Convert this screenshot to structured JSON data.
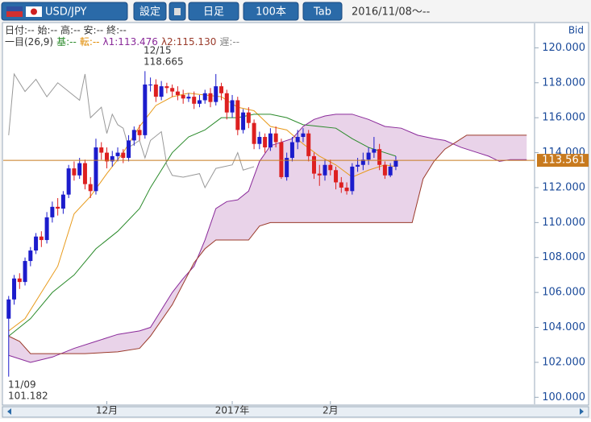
{
  "header": {
    "pair": "USD/JPY",
    "buttons": [
      "設定",
      "日足",
      "100本",
      "Tab"
    ],
    "range": "2016/11/08～--"
  },
  "info": {
    "line1": "日付:-- 始:-- 高:-- 安:-- 終:--",
    "line2": [
      {
        "text": "一目(26,9)",
        "color": "#333333"
      },
      {
        "text": "基:--",
        "color": "#2a8a2a"
      },
      {
        "text": "転:--",
        "color": "#e08a00"
      },
      {
        "text": "λ1:113.476",
        "color": "#8a2a9a"
      },
      {
        "text": "λ2:115.130",
        "color": "#9a3a2a"
      },
      {
        "text": "遅:--",
        "color": "#888888"
      }
    ]
  },
  "chart_data": {
    "type": "candlestick",
    "axis_label": "Bid",
    "annotations": [
      {
        "date": "12/15",
        "price": "118.665"
      },
      {
        "date": "11/09",
        "price": "101.182"
      }
    ],
    "xlim": [
      -1,
      96
    ],
    "xticks": [
      {
        "value": 18,
        "label": "12月"
      },
      {
        "value": 41,
        "label": "2017年"
      },
      {
        "value": 59,
        "label": "2月"
      }
    ],
    "ylim": [
      99.6,
      121.4
    ],
    "yticks": [
      {
        "value": 100,
        "label": "100.000"
      },
      {
        "value": 102,
        "label": "102.000"
      },
      {
        "value": 104,
        "label": "104.000"
      },
      {
        "value": 106,
        "label": "106.000"
      },
      {
        "value": 108,
        "label": "108.000"
      },
      {
        "value": 110,
        "label": "110.000"
      },
      {
        "value": 112,
        "label": "112.000"
      },
      {
        "value": 114,
        "label": "114.000"
      },
      {
        "value": 116,
        "label": "116.000"
      },
      {
        "value": 118,
        "label": "118.000"
      },
      {
        "value": 120,
        "label": "120.000"
      }
    ],
    "up_color": "#1c1ccc",
    "down_color": "#dd2020",
    "current_price": {
      "value": 113.561,
      "label": "113.561",
      "color": "#c87a1e"
    },
    "ohlc": {
      "open": [
        104.5,
        105.6,
        106.8,
        106.6,
        107.8,
        108.4,
        109.2,
        109.0,
        110.3,
        110.9,
        110.8,
        111.6,
        113.1,
        112.7,
        113.4,
        112.2,
        111.8,
        114.3,
        114.0,
        113.5,
        113.8,
        114.0,
        113.7,
        114.7,
        115.3,
        115.0,
        117.9,
        117.9,
        117.2,
        117.8,
        117.7,
        117.5,
        117.3,
        117.1,
        117.2,
        116.8,
        117.0,
        117.4,
        116.9,
        117.8,
        117.4,
        116.3,
        117.0,
        115.3,
        116.3,
        115.7,
        114.5,
        114.9,
        114.3,
        115.1,
        114.6,
        112.6,
        113.7,
        114.6,
        114.9,
        115.1,
        113.8,
        112.8,
        112.7,
        113.3,
        113.0,
        112.3,
        112.0,
        111.8,
        113.2,
        113.3,
        113.6,
        114.0,
        114.2,
        113.3,
        112.7,
        113.2
      ],
      "high": [
        105.8,
        107.0,
        107.1,
        108.0,
        108.6,
        109.4,
        109.5,
        110.6,
        111.2,
        111.4,
        111.8,
        113.3,
        113.5,
        113.7,
        113.6,
        112.6,
        114.8,
        114.6,
        114.3,
        114.1,
        114.3,
        114.2,
        115.0,
        115.5,
        115.6,
        118.665,
        118.3,
        118.2,
        118.1,
        118.0,
        117.9,
        117.8,
        117.6,
        117.4,
        117.5,
        117.3,
        117.6,
        117.7,
        118.5,
        118.0,
        117.6,
        117.3,
        117.2,
        116.5,
        116.6,
        115.9,
        115.2,
        115.1,
        115.4,
        115.5,
        114.8,
        114.0,
        114.9,
        115.3,
        115.4,
        115.3,
        114.0,
        113.3,
        113.6,
        113.6,
        113.2,
        112.6,
        112.3,
        113.4,
        113.7,
        114.0,
        114.3,
        114.9,
        114.5,
        113.5,
        113.4,
        113.8
      ],
      "low": [
        101.182,
        105.3,
        106.2,
        106.4,
        107.5,
        108.2,
        108.6,
        108.8,
        110.0,
        110.4,
        110.5,
        111.4,
        112.4,
        112.5,
        111.9,
        111.4,
        111.6,
        113.6,
        113.1,
        113.2,
        113.5,
        113.4,
        113.5,
        114.4,
        114.7,
        114.8,
        117.5,
        116.9,
        117.0,
        117.4,
        117.2,
        117.0,
        116.8,
        116.9,
        116.5,
        116.6,
        116.8,
        116.6,
        116.7,
        117.0,
        115.9,
        116.0,
        115.0,
        115.1,
        115.4,
        114.2,
        114.2,
        114.0,
        114.1,
        114.3,
        112.5,
        112.4,
        113.5,
        114.2,
        114.6,
        113.5,
        112.5,
        112.1,
        112.4,
        112.7,
        111.9,
        111.7,
        111.6,
        111.6,
        112.9,
        113.0,
        113.3,
        113.7,
        113.0,
        112.5,
        112.6,
        113.0
      ],
      "close": [
        105.6,
        106.8,
        106.6,
        107.8,
        108.4,
        109.2,
        109.0,
        110.3,
        110.9,
        110.8,
        111.6,
        113.1,
        112.7,
        113.4,
        112.2,
        111.8,
        114.3,
        114.0,
        113.5,
        113.8,
        114.0,
        113.7,
        114.7,
        115.3,
        115.0,
        117.9,
        117.9,
        117.2,
        117.8,
        117.7,
        117.5,
        117.3,
        117.1,
        117.2,
        116.8,
        117.0,
        117.4,
        116.9,
        117.8,
        117.4,
        116.3,
        117.0,
        115.3,
        116.3,
        115.7,
        114.5,
        114.9,
        114.3,
        115.1,
        114.6,
        112.6,
        113.7,
        114.6,
        114.9,
        115.1,
        113.8,
        112.8,
        112.7,
        113.3,
        113.0,
        112.3,
        112.0,
        111.8,
        113.2,
        113.3,
        113.6,
        114.0,
        114.2,
        113.3,
        112.7,
        113.2,
        113.561
      ]
    },
    "lines": [
      {
        "role": "tenkan",
        "color": "#e89a1a",
        "x": [
          0,
          3,
          6,
          9,
          12,
          15,
          18,
          21,
          24,
          27,
          30,
          33,
          36,
          39,
          42,
          45,
          48,
          51,
          54,
          57,
          60,
          63,
          66,
          69,
          71
        ],
        "values": [
          103.8,
          104.5,
          106,
          107.5,
          110.5,
          111.5,
          112.8,
          114,
          115.5,
          116.7,
          117.2,
          117.4,
          117.3,
          117.2,
          116.6,
          116.4,
          115.5,
          115.3,
          114.5,
          113.8,
          113.3,
          112.6,
          113,
          113.3,
          113.2
        ]
      },
      {
        "role": "kijun",
        "color": "#2a8a2a",
        "x": [
          0,
          4,
          8,
          12,
          16,
          20,
          24,
          26,
          28,
          30,
          33,
          36,
          39,
          42,
          45,
          48,
          51,
          54,
          57,
          60,
          63,
          66,
          69,
          71
        ],
        "values": [
          103.5,
          104.5,
          106,
          107,
          108.5,
          109.5,
          110.8,
          112,
          113,
          114,
          114.9,
          115.3,
          116,
          116,
          116.2,
          116.2,
          116,
          115.6,
          115.5,
          115.4,
          114.8,
          114.3,
          114,
          113.8
        ]
      },
      {
        "role": "chikou",
        "color": "#999999",
        "x": [
          0,
          1,
          3,
          5,
          7,
          9,
          11,
          13,
          14,
          15,
          17,
          18,
          19,
          20,
          21,
          22,
          24,
          25,
          26,
          28,
          29,
          30,
          32,
          35,
          36,
          38,
          41,
          42,
          43,
          45
        ],
        "values": [
          115,
          118.5,
          117.5,
          118.2,
          117.2,
          118,
          117.5,
          117,
          118.5,
          116,
          116.6,
          115.1,
          116.2,
          115.6,
          115.4,
          114.3,
          114.7,
          113.7,
          114.7,
          115.2,
          113.3,
          112.7,
          112.6,
          112.8,
          112,
          113.1,
          113.3,
          114,
          113,
          113.2
        ]
      },
      {
        "role": "senkou_a",
        "color": "#8a2a9a",
        "x": [
          0,
          4,
          8,
          12,
          16,
          20,
          24,
          26,
          28,
          30,
          32,
          34,
          36,
          38,
          40,
          42,
          44,
          46,
          48,
          50,
          52,
          54,
          56,
          58,
          60,
          63,
          66,
          69,
          72,
          75,
          78,
          80,
          83,
          86,
          88,
          90,
          92,
          95
        ],
        "values": [
          102.4,
          102,
          102.3,
          102.8,
          103.2,
          103.6,
          103.8,
          104,
          105,
          106,
          106.8,
          107.5,
          109,
          110.8,
          111.2,
          111.3,
          111.8,
          113.5,
          114.4,
          114.6,
          114.8,
          115.5,
          115.9,
          116.1,
          116.2,
          116.2,
          115.9,
          115.5,
          115.4,
          115,
          114.8,
          114.7,
          114.3,
          114,
          113.8,
          113.5,
          113.6,
          113.6
        ]
      },
      {
        "role": "senkou_b",
        "color": "#9a3a2a",
        "x": [
          0,
          2,
          4,
          8,
          14,
          20,
          24,
          26,
          30,
          34,
          36,
          38,
          44,
          46,
          48,
          50,
          60,
          70,
          74,
          76,
          78,
          80,
          82,
          84,
          88,
          95
        ],
        "values": [
          103.5,
          103.2,
          102.5,
          102.5,
          102.5,
          102.6,
          102.8,
          103.5,
          105.3,
          107.7,
          108.5,
          109,
          109,
          109.8,
          110,
          110,
          110,
          110,
          110,
          112.5,
          113.5,
          114.2,
          114.6,
          115,
          115,
          115
        ]
      }
    ]
  }
}
